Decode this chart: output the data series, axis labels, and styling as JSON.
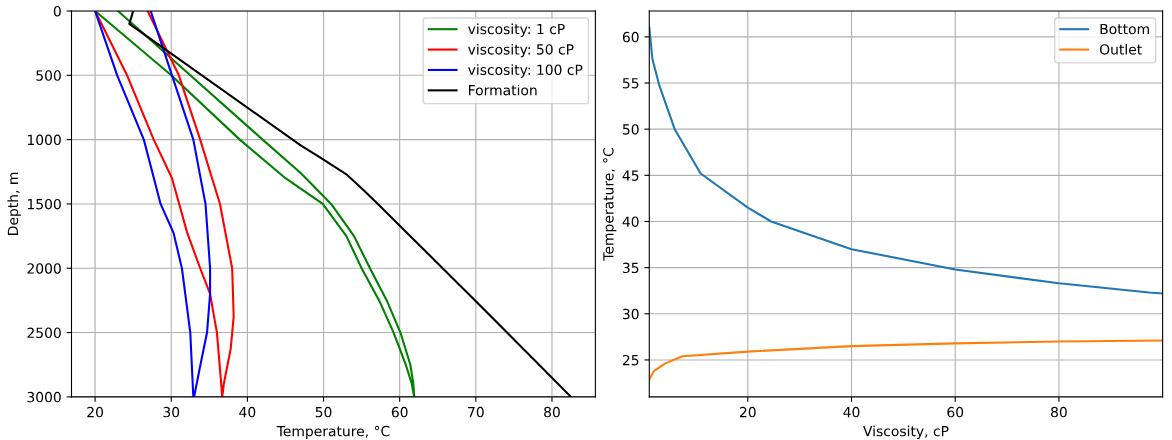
{
  "chart_data": [
    {
      "type": "line",
      "xlabel": "Temperature, °C",
      "ylabel": "Depth, m",
      "xlim": [
        16.9,
        85.7
      ],
      "xticks": [
        20,
        30,
        40,
        50,
        60,
        70,
        80
      ],
      "ylim": [
        3000,
        0
      ],
      "yticks": [
        0,
        500,
        1000,
        1500,
        2000,
        2500,
        3000
      ],
      "grid": true,
      "legend": "top right",
      "series": [
        {
          "name": "viscosity: 1 cP",
          "color": "#008000",
          "x": [
            20,
            30,
            39,
            45,
            49.9,
            53,
            55,
            57.3,
            59.2,
            60.8,
            61.6,
            61.9,
            61.8,
            61.4,
            60.1,
            58.3,
            56.1,
            54,
            51,
            47,
            42,
            32.5,
            23
          ],
          "values": [
            0,
            500,
            1000,
            1300,
            1500,
            1750,
            2000,
            2250,
            2500,
            2750,
            2900,
            3000,
            2900,
            2750,
            2500,
            2250,
            2000,
            1750,
            1500,
            1260,
            1000,
            500,
            0
          ]
        },
        {
          "name": "viscosity: 50 cP",
          "color": "#ff0000",
          "x": [
            20,
            24.2,
            27.7,
            30.1,
            32.1,
            33.8,
            35.1,
            36,
            36.7,
            36.9,
            37.8,
            38.2,
            38,
            36.4,
            33.8,
            31,
            26.9
          ],
          "values": [
            0,
            500,
            1000,
            1300,
            1725,
            2000,
            2200,
            2500,
            3000,
            2900,
            2630,
            2375,
            2000,
            1500,
            1000,
            500,
            0
          ]
        },
        {
          "name": "viscosity: 100 cP",
          "color": "#0000ff",
          "x": [
            20,
            22.9,
            26.4,
            28.6,
            30.3,
            31.4,
            32.5,
            32.9,
            33,
            33.8,
            34.7,
            35.1,
            35.1,
            34.5,
            32.9,
            30.1,
            27.3
          ],
          "values": [
            0,
            500,
            1000,
            1500,
            1725,
            2000,
            2500,
            3000,
            3000,
            2760,
            2500,
            2200,
            2000,
            1500,
            1000,
            500,
            0
          ]
        },
        {
          "name": "Formation",
          "color": "#000000",
          "x": [
            25,
            24.5,
            47,
            50,
            53,
            55.2,
            57,
            70,
            82.5
          ],
          "values": [
            0,
            100,
            1045,
            1155,
            1270,
            1389,
            1492,
            2256,
            3000
          ]
        }
      ]
    },
    {
      "type": "line",
      "xlabel": "Viscosity, cP",
      "ylabel": "Temperature, °C",
      "xlim": [
        1,
        100
      ],
      "xticks": [
        20,
        40,
        60,
        80
      ],
      "ylim": [
        21,
        62.8
      ],
      "yticks": [
        25,
        30,
        35,
        40,
        45,
        50,
        55,
        60
      ],
      "grid": true,
      "legend": "top right",
      "series": [
        {
          "name": "Bottom",
          "color": "#1f77b4",
          "x": [
            1,
            1.6,
            2.9,
            5.9,
            10.9,
            20,
            24.5,
            40,
            60,
            80,
            97.4,
            100
          ],
          "values": [
            61,
            57.6,
            54.8,
            50,
            45.2,
            41.5,
            40,
            37,
            34.8,
            33.3,
            32.3,
            32.2
          ]
        },
        {
          "name": "Outlet",
          "color": "#ff7f0e",
          "x": [
            1,
            1.9,
            4,
            7.4,
            20,
            40,
            60,
            80,
            100
          ],
          "values": [
            22.9,
            23.8,
            24.6,
            25.4,
            25.9,
            26.5,
            26.8,
            27,
            27.1
          ]
        }
      ]
    }
  ]
}
